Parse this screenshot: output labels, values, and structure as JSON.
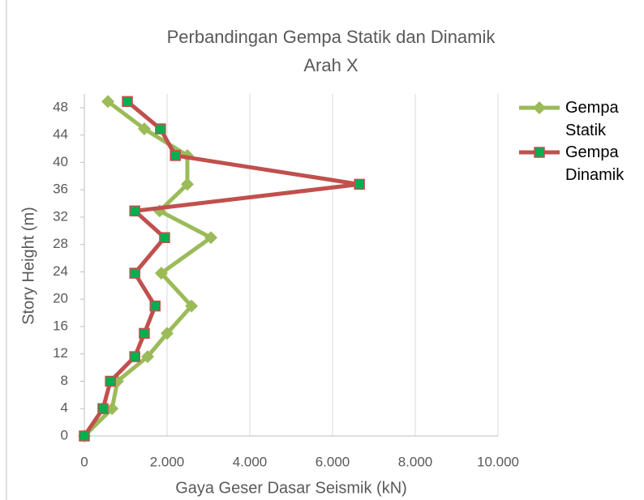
{
  "chart_data": {
    "type": "line",
    "title": [
      "Perbandingan Gempa Statik dan Dinamik",
      "Arah X"
    ],
    "x_label": "Gaya Geser Dasar Seismik (kN)",
    "y_label": "Story Height (m)",
    "series": [
      {
        "name": "Gempa Statik",
        "color": "#9bbb59",
        "marker": "diamond",
        "marker_fill": "#9bbb59",
        "x": [
          0,
          670,
          800,
          1530,
          2000,
          2590,
          1860,
          3060,
          1820,
          2490,
          2490,
          1450,
          570
        ],
        "values": [
          0,
          4,
          8,
          11.6,
          15,
          19,
          23.8,
          29,
          32.9,
          36.8,
          41,
          44.9,
          48.9
        ]
      },
      {
        "name": "Gempa Dinamik",
        "color": "#c0504d",
        "marker": "square",
        "marker_fill": "#00b050",
        "x": [
          0,
          450,
          630,
          1220,
          1450,
          1710,
          1220,
          1940,
          1220,
          6650,
          2200,
          1840,
          1040
        ],
        "values": [
          0,
          4,
          8,
          11.6,
          15,
          19,
          23.8,
          29,
          32.9,
          36.8,
          41,
          44.9,
          48.9
        ]
      }
    ],
    "xlim": [
      0,
      10000
    ],
    "xticks": [
      0,
      {
        "value": 2000,
        "label": "2.000"
      },
      {
        "value": 4000,
        "label": "4.000"
      },
      {
        "value": 6000,
        "label": "6.000"
      },
      {
        "value": 8000,
        "label": "8.000"
      },
      {
        "value": 10000,
        "label": "10.000"
      }
    ],
    "ylim": [
      0,
      50
    ],
    "yticks": [
      0,
      4,
      8,
      12,
      16,
      20,
      24,
      28,
      32,
      36,
      40,
      44,
      48
    ],
    "grid": "x",
    "legend": "right"
  }
}
